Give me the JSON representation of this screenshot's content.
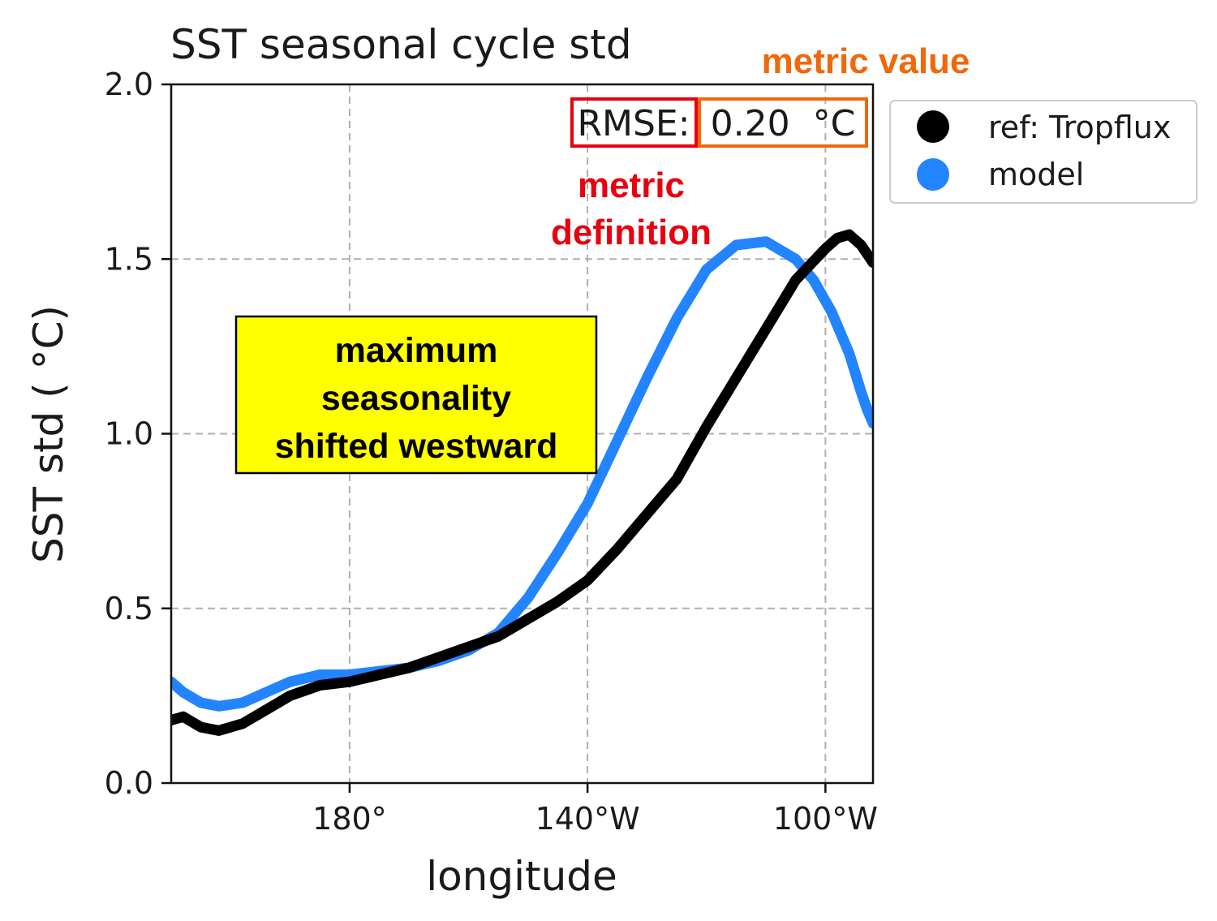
{
  "chart_data": {
    "type": "line",
    "title": "SST seasonal cycle std",
    "xlabel": "longitude",
    "ylabel": "SST std ( °C)",
    "xlim": [
      150,
      268
    ],
    "ylim": [
      0.0,
      2.0
    ],
    "x_units": "degrees east longitude",
    "xticks": [
      {
        "value": 180,
        "label": "180°"
      },
      {
        "value": 220,
        "label": "140°W"
      },
      {
        "value": 260,
        "label": "100°W"
      }
    ],
    "yticks": [
      {
        "value": 0.0,
        "label": "0.0"
      },
      {
        "value": 0.5,
        "label": "0.5"
      },
      {
        "value": 1.0,
        "label": "1.0"
      },
      {
        "value": 1.5,
        "label": "1.5"
      },
      {
        "value": 2.0,
        "label": "2.0"
      }
    ],
    "grid": true,
    "legend_position": "outside-right-top",
    "series": [
      {
        "name": "ref: Tropflux",
        "color": "#000000",
        "x": [
          150,
          152,
          155,
          158,
          162,
          166,
          170,
          175,
          180,
          185,
          190,
          195,
          200,
          205,
          210,
          215,
          220,
          225,
          230,
          235,
          240,
          245,
          250,
          255,
          260,
          262,
          264,
          266,
          268
        ],
        "y": [
          0.18,
          0.19,
          0.16,
          0.15,
          0.17,
          0.21,
          0.25,
          0.28,
          0.29,
          0.31,
          0.33,
          0.36,
          0.39,
          0.42,
          0.47,
          0.52,
          0.58,
          0.67,
          0.77,
          0.87,
          1.02,
          1.16,
          1.3,
          1.44,
          1.53,
          1.56,
          1.57,
          1.54,
          1.49
        ]
      },
      {
        "name": "model",
        "color": "#2284ff",
        "x": [
          150,
          152,
          155,
          158,
          162,
          166,
          170,
          175,
          180,
          185,
          190,
          195,
          200,
          205,
          210,
          215,
          220,
          225,
          230,
          235,
          240,
          245,
          250,
          255,
          258,
          261,
          264,
          266,
          267,
          268
        ],
        "y": [
          0.29,
          0.26,
          0.23,
          0.22,
          0.23,
          0.26,
          0.29,
          0.31,
          0.31,
          0.32,
          0.33,
          0.35,
          0.38,
          0.43,
          0.53,
          0.66,
          0.8,
          0.98,
          1.16,
          1.33,
          1.47,
          1.54,
          1.55,
          1.5,
          1.44,
          1.35,
          1.23,
          1.12,
          1.07,
          1.03
        ]
      }
    ],
    "annotations": {
      "metric_name": "RMSE:",
      "metric_value": "0.20  °C",
      "metric_value_label": "metric value",
      "metric_definition_label": [
        "metric",
        "definition"
      ],
      "highlight_box": [
        "maximum",
        "seasonality",
        "shifted westward"
      ]
    },
    "colors": {
      "metric_definition": "#e8000e",
      "metric_value": "#f0680a",
      "highlight_fill": "#ffff00",
      "grid": "#b0b0b0"
    }
  }
}
